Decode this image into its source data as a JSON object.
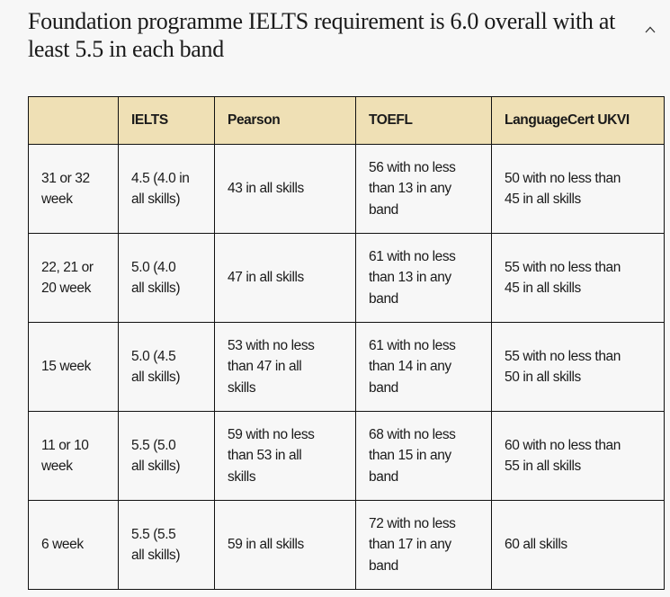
{
  "accordion": {
    "title": "Foundation programme IELTS requirement is 6.0 overall with at least 5.5 in each band",
    "expanded": true
  },
  "table": {
    "headers": [
      "",
      "IELTS",
      "Pearson",
      "TOEFL",
      "LanguageCert UKVI"
    ],
    "rows": [
      [
        "31 or 32\nweek",
        "4.5 (4.0 in\nall skills)",
        "43 in all skills",
        "56 with no less\nthan 13 in any\nband",
        "50 with no less than\n45 in all skills"
      ],
      [
        "22, 21 or\n20 week",
        "5.0 (4.0\nall skills)",
        "47 in all skills",
        "61 with no less\nthan 13 in any\nband",
        "55 with no less than\n45 in all skills"
      ],
      [
        "15 week",
        "5.0 (4.5\nall skills)",
        "53 with no less\nthan 47 in all\nskills",
        "61 with no less\nthan 14 in any\nband",
        "55 with no less than\n50 in all skills"
      ],
      [
        "11 or 10\nweek",
        "5.5 (5.0\nall skills)",
        "59 with no less\nthan 53 in all\nskills",
        "68 with no less\nthan 15 in any\nband",
        "60 with no less than\n55 in all skills"
      ],
      [
        "6 week",
        "5.5 (5.5\nall skills)",
        "59 in all skills",
        "72 with no less\nthan 17 in any\nband",
        "60 all skills"
      ]
    ]
  },
  "colors": {
    "header_bg": "#efe0b5",
    "page_bg": "#f7f7f7"
  }
}
